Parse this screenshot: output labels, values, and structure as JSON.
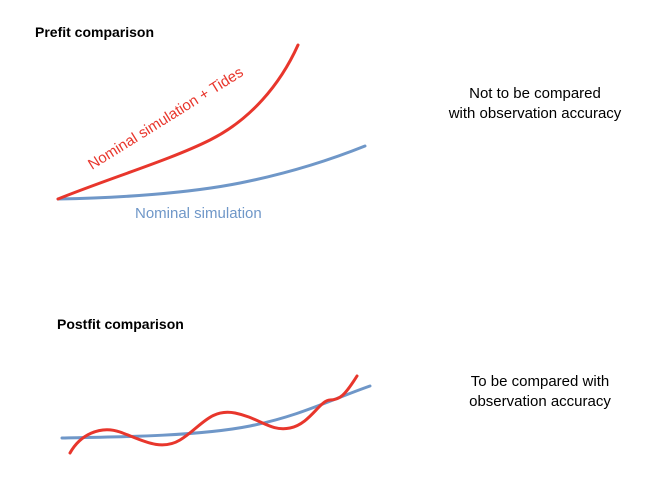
{
  "colors": {
    "nominal": "#6f97c8",
    "tides": "#e8362c",
    "text": "#000000"
  },
  "prefit": {
    "title": "Prefit comparison",
    "note_lines": [
      "Not to be compared",
      "with observation accuracy"
    ],
    "curves": {
      "tides_label": "Nominal simulation + Tides",
      "nominal_label": "Nominal simulation"
    }
  },
  "postfit": {
    "title": "Postfit comparison",
    "note_lines": [
      "To be compared with",
      "observation accuracy"
    ]
  }
}
